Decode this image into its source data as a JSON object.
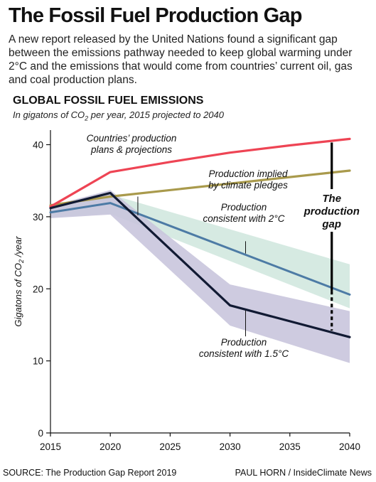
{
  "header": {
    "title": "The Fossil Fuel Production Gap",
    "intro": "A new report released by the United Nations found a significant gap between the emissions pathway needed to keep global warming under 2°C and the emissions that would come from countries’ current oil, gas and coal production plans."
  },
  "chart_header": {
    "title": "GLOBAL FOSSIL FUEL EMISSIONS",
    "subtitle_pre": "In gigatons of CO",
    "subtitle_sub": "2",
    "subtitle_post": " per year, 2015 projected to 2040"
  },
  "footer": {
    "source": "SOURCE: The Production Gap Report 2019",
    "credit": "PAUL HORN / InsideClimate News"
  },
  "colors": {
    "production_plans": "#ee4454",
    "climate_pledges": "#a99a4c",
    "two_degree_line": "#4d7ba5",
    "two_degree_band": "#cfe6dd",
    "one_five_line": "#111a33",
    "one_five_band": "#c9c5dd",
    "gap_marker": "#000000"
  },
  "chart_data": {
    "type": "line",
    "ylabel_pre": "Gigatons of CO",
    "ylabel_sub": "2",
    "ylabel_post": " /year",
    "xlim": [
      2015,
      2040
    ],
    "ylim": [
      0,
      42
    ],
    "xticks": [
      2015,
      2020,
      2025,
      2030,
      2035,
      2040
    ],
    "yticks": [
      0,
      10,
      20,
      30,
      40
    ],
    "grid": false,
    "series": [
      {
        "key": "plans",
        "x": [
          2015,
          2020,
          2025,
          2030,
          2035,
          2040
        ],
        "y": [
          31.4,
          36.2,
          37.6,
          38.9,
          39.9,
          40.8
        ]
      },
      {
        "key": "pledges",
        "x": [
          2015,
          2020,
          2040
        ],
        "y": [
          31.6,
          32.8,
          36.4
        ]
      },
      {
        "key": "two_degree",
        "x": [
          2015,
          2020,
          2040
        ],
        "y": [
          30.6,
          31.9,
          19.2
        ],
        "band_lower": [
          29.9,
          30.4,
          17.3
        ],
        "band_upper": [
          31.2,
          33.1,
          23.4
        ]
      },
      {
        "key": "one_five",
        "x": [
          2015,
          2020,
          2030,
          2040
        ],
        "y": [
          31.2,
          33.3,
          17.7,
          13.3
        ],
        "band_lower": [
          29.8,
          30.3,
          14.9,
          9.7
        ],
        "band_upper": [
          31.5,
          33.7,
          20.6,
          16.9
        ]
      }
    ],
    "annotations": [
      {
        "key": "plans",
        "lines": [
          "Countries’ production",
          "plans & projections"
        ]
      },
      {
        "key": "pledges",
        "lines": [
          "Production implied",
          "by climate pledges"
        ]
      },
      {
        "key": "two_degree",
        "lines": [
          "Production",
          "consistent with 2°C"
        ]
      },
      {
        "key": "one_five",
        "lines": [
          "Production",
          "consistent with 1.5°C"
        ]
      }
    ],
    "gap": {
      "x": 2038.5,
      "y_top": 40.3,
      "y_solid_bottom": 19.7,
      "y_bottom": 14.2,
      "label": [
        "The",
        "production",
        "gap"
      ]
    }
  }
}
